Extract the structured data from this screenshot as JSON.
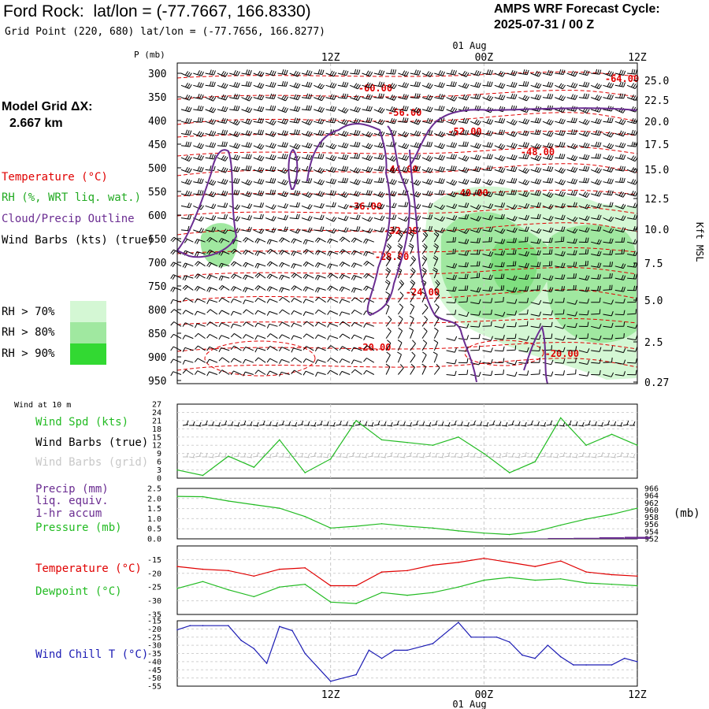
{
  "header": {
    "station": "Ford Rock:",
    "latlon": "lat/lon = (-77.7667, 166.8330)",
    "grid_point": "Grid Point (220, 680) lat/lon = (-77.7656, 166.8277)",
    "forecast_cycle_title": "AMPS WRF Forecast Cycle:",
    "forecast_cycle_value": "2025-07-31 / 00  Z"
  },
  "legend": {
    "model_grid_label": "Model Grid ΔX:",
    "model_grid_value": "2.667 km",
    "temperature": "Temperature (°C)",
    "rh": "RH (%, WRT liq. wat.)",
    "cloud": "Cloud/Precip Outline",
    "wind_barbs": "Wind Barbs (kts) (true)",
    "rh70": "RH > 70%",
    "rh80": "RH > 80%",
    "rh90": "RH > 90%",
    "rh_colors": [
      "#d4f7d4",
      "#a0e8a0",
      "#32d932"
    ],
    "temperature_color": "#e00000",
    "rh_color": "#22aa22",
    "cloud_color": "#6a2c91"
  },
  "time_axis": {
    "top_date": "01 Aug",
    "bottom_date": "01 Aug",
    "ticks": [
      "12Z",
      "00Z",
      "12Z"
    ]
  },
  "panels": {
    "wind10m_title": "Wind at 10 m",
    "wind_spd": "Wind Spd (kts)",
    "wind_barbs_true": "Wind Barbs (true)",
    "wind_barbs_grid": "Wind Barbs (grid)",
    "precip_l1": "Precip (mm)",
    "precip_l2": "liq. equiv.",
    "precip_l3": "1-hr accum",
    "pressure": "Pressure (mb)",
    "pressure_unit": "(mb)",
    "temperature": "Temperature (°C)",
    "dewpoint": "Dewpoint (°C)",
    "windchill": "Wind Chill T (°C)"
  },
  "chart_data": [
    {
      "type": "line",
      "name": "sounding-cross-section",
      "ylabel": "P (mb)",
      "y2label": "Kft MSL",
      "pressure_ticks": [
        "300",
        "350",
        "400",
        "450",
        "500",
        "550",
        "600",
        "650",
        "700",
        "750",
        "800",
        "850",
        "900",
        "950"
      ],
      "height_ticks": [
        "25.0",
        "22.5",
        "20.0",
        "17.5",
        "15.0",
        "12.5",
        "10.0",
        "7.5",
        "5.0",
        "2.5",
        "0.27"
      ],
      "isotherm_labels": [
        {
          "label": "-64.00",
          "x_h": 34.8,
          "p": 318
        },
        {
          "label": "-60.00",
          "x_h": 15.5,
          "p": 338
        },
        {
          "label": "-56.00",
          "x_h": 17.8,
          "p": 390
        },
        {
          "label": "-52.00",
          "x_h": 22.5,
          "p": 430
        },
        {
          "label": "-48.00",
          "x_h": 28.2,
          "p": 473
        },
        {
          "label": "-44.00",
          "x_h": 17.5,
          "p": 510
        },
        {
          "label": "-40.00",
          "x_h": 23.0,
          "p": 560
        },
        {
          "label": "-36.00",
          "x_h": 14.7,
          "p": 588
        },
        {
          "label": "-32.00",
          "x_h": 17.5,
          "p": 640
        },
        {
          "label": "-28.00",
          "x_h": 16.8,
          "p": 695
        },
        {
          "label": "-24.00",
          "x_h": 19.2,
          "p": 770
        },
        {
          "label": "-20.00",
          "x_h": 15.4,
          "p": 887
        },
        {
          "label": "-20.00",
          "x_h": 30.1,
          "p": 900
        }
      ]
    },
    {
      "type": "line",
      "name": "wind-speed-10m",
      "ylabel": "Wind Spd (kts)",
      "ylim": [
        0,
        27
      ],
      "yticks": [
        "27",
        "24",
        "21",
        "18",
        "15",
        "12",
        "9",
        "6",
        "3",
        "0"
      ],
      "x_hours": [
        0,
        2,
        4,
        6,
        8,
        10,
        12,
        14,
        16,
        18,
        20,
        22,
        24,
        26,
        28,
        30,
        32,
        34,
        36
      ],
      "series": [
        {
          "values": [
            3,
            1,
            8,
            4,
            14,
            2,
            7,
            21,
            14,
            13,
            12,
            15,
            9,
            2,
            6,
            22,
            12,
            16,
            12
          ]
        }
      ]
    },
    {
      "type": "line",
      "name": "precip-pressure",
      "y1lim": [
        0,
        2.5
      ],
      "y1ticks": [
        "2.5",
        "2.0",
        "1.5",
        "1.0",
        "0.5",
        "0.0"
      ],
      "y2lim": [
        952,
        966
      ],
      "y2ticks": [
        "966",
        "964",
        "962",
        "960",
        "958",
        "956",
        "954",
        "952"
      ],
      "x_hours": [
        0,
        2,
        4,
        6,
        8,
        10,
        12,
        14,
        16,
        18,
        20,
        22,
        24,
        26,
        28,
        30,
        32,
        34,
        36
      ],
      "series": [
        {
          "name": "Pressure (mb)",
          "values": [
            963.8,
            963.7,
            962.5,
            961.5,
            960.5,
            958.2,
            955.0,
            955.5,
            956.2,
            955.5,
            955.0,
            954.2,
            953.6,
            953.2,
            954.0,
            955.8,
            957.5,
            958.8,
            960.5
          ]
        },
        {
          "values": [
            0,
            0,
            0,
            0,
            0,
            0,
            0,
            0,
            0,
            0,
            0,
            0,
            0,
            0,
            0.02,
            0.04,
            0.05,
            0.08,
            0.1
          ]
        }
      ]
    },
    {
      "type": "line",
      "name": "temperature-dewpoint",
      "ylim": [
        -35,
        -10
      ],
      "yticks": [
        "-15",
        "-20",
        "-25",
        "-30",
        "-35"
      ],
      "x_hours": [
        0,
        2,
        4,
        6,
        8,
        10,
        12,
        14,
        16,
        18,
        20,
        22,
        24,
        26,
        28,
        30,
        32,
        34,
        36
      ],
      "series": [
        {
          "name": "Temperature (°C)",
          "color": "#e00000",
          "values": [
            -17.5,
            -18.5,
            -19,
            -21,
            -18.5,
            -18,
            -24.5,
            -24.5,
            -19.5,
            -19,
            -17,
            -16,
            -14.5,
            -16,
            -17.5,
            -15.5,
            -19.5,
            -20.5,
            -21
          ]
        },
        {
          "name": "Dewpoint (°C)",
          "color": "#22bb22",
          "values": [
            -25.5,
            -23,
            -26,
            -28.5,
            -25,
            -24,
            -30.5,
            -31,
            -27,
            -28,
            -27,
            -25,
            -22.5,
            -21.5,
            -22.5,
            -22,
            -23.5,
            -24,
            -24.5
          ]
        }
      ]
    },
    {
      "type": "line",
      "name": "wind-chill",
      "ylim": [
        -55,
        -15
      ],
      "yticks": [
        "-15",
        "-20",
        "-25",
        "-30",
        "-35",
        "-40",
        "-45",
        "-50",
        "-55"
      ],
      "x_hours": [
        0,
        1,
        2,
        4,
        5,
        6,
        7,
        8,
        9,
        10,
        12,
        13,
        14,
        15,
        16,
        17,
        18,
        20,
        22,
        23,
        24,
        25,
        26,
        27,
        28,
        29,
        30,
        31,
        32,
        34,
        35,
        36
      ],
      "series": [
        {
          "name": "Wind Chill T (°C)",
          "color": "#1c1cb4",
          "values": [
            -20.5,
            -18,
            -18,
            -18,
            -27,
            -32,
            -41,
            -18.5,
            -21,
            -35,
            -52,
            -50,
            -48,
            -33,
            -38,
            -33,
            -33,
            -29,
            -16,
            -25,
            -25,
            -25,
            -28,
            -36,
            -38,
            -30,
            -37,
            -42,
            -42,
            -42,
            -38,
            -40
          ]
        }
      ]
    }
  ]
}
